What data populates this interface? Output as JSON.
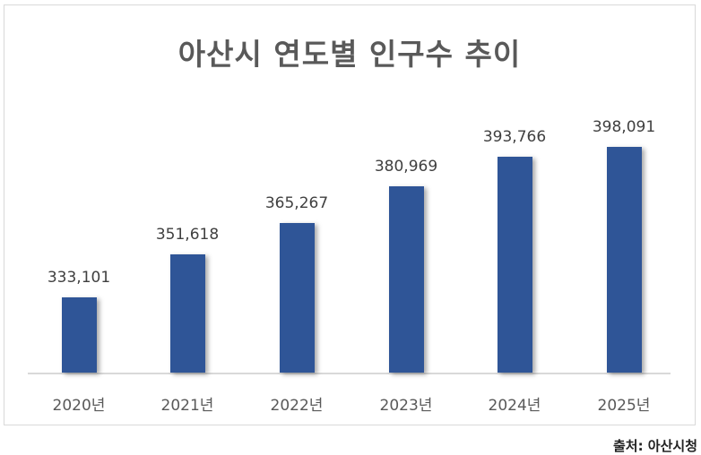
{
  "chart_data": {
    "type": "bar",
    "title": "아산시 연도별 인구수 추이",
    "categories": [
      "2020년",
      "2021년",
      "2022년",
      "2023년",
      "2024년",
      "2025년"
    ],
    "values": [
      333101,
      351618,
      365267,
      380969,
      393766,
      398091
    ],
    "value_labels": [
      "333,101",
      "351,618",
      "365,267",
      "380,969",
      "393,766",
      "398,091"
    ],
    "xlabel": "",
    "ylabel": "",
    "grid": false,
    "legend": null,
    "bar_color": "#2f5597",
    "data_labels": true
  },
  "title": "아산시 연도별 인구수 추이",
  "source": "출처: 아산시청",
  "colors": {
    "bar": "#2f5597",
    "title": "#595959",
    "axis": "#d9d9d9"
  }
}
